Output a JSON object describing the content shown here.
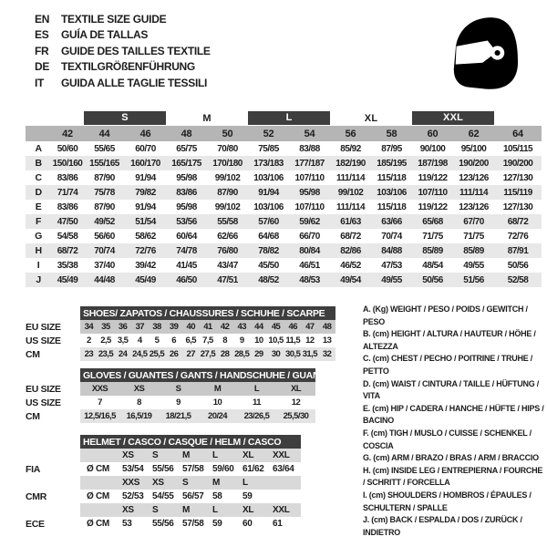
{
  "header": {
    "languages": [
      {
        "code": "EN",
        "title": "TEXTILE SIZE GUIDE"
      },
      {
        "code": "ES",
        "title": "GUÍA DE TALLAS"
      },
      {
        "code": "FR",
        "title": "GUIDE DES TAILLES TEXTILE"
      },
      {
        "code": "DE",
        "title": "TEXTILGRÖßENFÜHRUNG"
      },
      {
        "code": "IT",
        "title": "GUIDA ALLE TAGLIE TESSILI"
      }
    ],
    "logo": "helmet-icon"
  },
  "textile_table": {
    "size_groups": [
      {
        "label": "S",
        "boxed": true
      },
      {
        "label": "M",
        "boxed": false
      },
      {
        "label": "L",
        "boxed": true
      },
      {
        "label": "XL",
        "boxed": false
      },
      {
        "label": "XXL",
        "boxed": true
      }
    ],
    "columns": [
      "42",
      "44",
      "46",
      "48",
      "50",
      "52",
      "54",
      "56",
      "58",
      "60",
      "62",
      "64"
    ],
    "rows": [
      {
        "label": "A",
        "values": [
          "50/60",
          "55/65",
          "60/70",
          "65/75",
          "70/80",
          "75/85",
          "83/88",
          "85/92",
          "87/95",
          "90/100",
          "95/100",
          "105/115"
        ]
      },
      {
        "label": "B",
        "values": [
          "150/160",
          "155/165",
          "160/170",
          "165/175",
          "170/180",
          "173/183",
          "177/187",
          "182/190",
          "185/195",
          "187/198",
          "190/200",
          "190/200"
        ]
      },
      {
        "label": "C",
        "values": [
          "83/86",
          "87/90",
          "91/94",
          "95/98",
          "99/102",
          "103/106",
          "107/110",
          "111/114",
          "115/118",
          "119/122",
          "123/126",
          "127/130"
        ]
      },
      {
        "label": "D",
        "values": [
          "71/74",
          "75/78",
          "79/82",
          "83/86",
          "87/90",
          "91/94",
          "95/98",
          "99/102",
          "103/106",
          "107/110",
          "111/114",
          "115/119"
        ]
      },
      {
        "label": "E",
        "values": [
          "83/86",
          "87/90",
          "91/94",
          "95/98",
          "99/102",
          "103/106",
          "107/110",
          "111/114",
          "115/118",
          "119/122",
          "123/126",
          "127/130"
        ]
      },
      {
        "label": "F",
        "values": [
          "47/50",
          "49/52",
          "51/54",
          "53/56",
          "55/58",
          "57/60",
          "59/62",
          "61/63",
          "63/66",
          "65/68",
          "67/70",
          "68/72"
        ]
      },
      {
        "label": "G",
        "values": [
          "54/58",
          "56/60",
          "58/62",
          "60/64",
          "62/66",
          "64/68",
          "66/70",
          "68/72",
          "70/74",
          "71/75",
          "71/75",
          "72/76"
        ]
      },
      {
        "label": "H",
        "values": [
          "68/72",
          "70/74",
          "72/76",
          "74/78",
          "76/80",
          "78/82",
          "80/84",
          "82/86",
          "84/88",
          "85/89",
          "85/89",
          "87/91"
        ]
      },
      {
        "label": "I",
        "values": [
          "35/38",
          "37/40",
          "39/42",
          "41/45",
          "43/47",
          "45/50",
          "46/51",
          "46/52",
          "47/53",
          "48/54",
          "49/55",
          "50/56"
        ]
      },
      {
        "label": "J",
        "values": [
          "45/49",
          "44/48",
          "45/49",
          "46/50",
          "47/51",
          "48/52",
          "48/53",
          "49/54",
          "49/55",
          "50/56",
          "51/56",
          "52/58"
        ]
      }
    ]
  },
  "shoes_table": {
    "title": "SHOES/ ZAPATOS / CHAUSSURES / SCHUHE / SCARPE",
    "rows": [
      {
        "label": "EU SIZE",
        "shade": "med",
        "values": [
          "34",
          "35",
          "36",
          "37",
          "38",
          "39",
          "40",
          "41",
          "42",
          "43",
          "44",
          "45",
          "46",
          "47",
          "48"
        ]
      },
      {
        "label": "US SIZE",
        "shade": "none",
        "values": [
          "2",
          "2,5",
          "3,5",
          "4",
          "5",
          "6",
          "6,5",
          "7,5",
          "8",
          "9",
          "10",
          "10,5",
          "11,5",
          "12",
          "13"
        ]
      },
      {
        "label": "CM",
        "shade": "light",
        "values": [
          "23",
          "23,5",
          "24",
          "24,5",
          "25,5",
          "26",
          "27",
          "27,5",
          "28",
          "28,5",
          "29",
          "30",
          "30,5",
          "31,5",
          "32"
        ]
      }
    ]
  },
  "gloves_table": {
    "title": "GLOVES / GUANTES / GANTS / HANDSCHUHE / GUANTI",
    "rows": [
      {
        "label": "EU SIZE",
        "shade": "med",
        "values": [
          "XXS",
          "XS",
          "S",
          "M",
          "L",
          "XL"
        ]
      },
      {
        "label": "US SIZE",
        "shade": "none",
        "values": [
          "7",
          "8",
          "9",
          "10",
          "11",
          "12"
        ]
      },
      {
        "label": "CM",
        "shade": "light",
        "values": [
          "12,5/16,5",
          "16,5/19",
          "18/21,5",
          "20/24",
          "23/26,5",
          "25,5/30"
        ]
      }
    ]
  },
  "helmet_table": {
    "title": "HELMET / CASCO / CASQUE / HELM / CASCO",
    "sections": [
      {
        "label": "FIA",
        "unit": "Ø CM",
        "sizes": [
          "XS",
          "S",
          "M",
          "L",
          "XL",
          "XXL"
        ],
        "values": [
          "53/54",
          "55/56",
          "57/58",
          "59/60",
          "61/62",
          "63/64"
        ]
      },
      {
        "label": "CMR",
        "unit": "Ø CM",
        "sizes": [
          "XXS",
          "XS",
          "S",
          "M",
          "L",
          ""
        ],
        "values": [
          "52/53",
          "54/55",
          "56/57",
          "58",
          "59",
          ""
        ]
      },
      {
        "label": "ECE",
        "unit": "Ø CM",
        "sizes": [
          "XS",
          "S",
          "M",
          "L",
          "XL",
          "XXL"
        ],
        "values": [
          "53",
          "55/56",
          "57/58",
          "59",
          "60",
          "61"
        ]
      }
    ]
  },
  "legend": {
    "items": [
      "A. (Kg) WEIGHT / PESO / POIDS / GEWITCH / PESO",
      "B. (cm) HEIGHT / ALTURA / HAUTEUR / HÖHE / ALTEZZA",
      "C. (cm) CHEST / PECHO / POITRINE / TRUHE / PETTO",
      "D. (cm) WAIST / CINTURA / TAILLE / HÜFTUNG / VITA",
      "E. (cm) HIP / CADERA / HANCHE / HÜFTE / HIPS /  BACINO",
      "F. (cm) TIGH / MUSLO / CUISSE / SCHENKEL / COSCIA",
      "G. (cm) ARM  / BRAZO / BRAS / ARM / BRACCIO",
      "H. (cm) INSIDE LEG / ENTREPIERNA / FOURCHE / SCHRITT / FORCELLA",
      "I. (cm) SHOULDERS / HOMBROS / ÉPAULES / SCHULTERN / SPALLE",
      "J. (cm) BACK / ESPALDA / DOS / ZURÜCK / INDIETRO"
    ]
  },
  "colors": {
    "dark_bar": "#3e3e3e",
    "number_row": "#b5b5b5",
    "stripe": "#e8e8e8",
    "shade_medium": "#c8c8c8",
    "shade_light": "#e3e3e3",
    "helmet_shade": "#d9d9d9",
    "text": "#1d1d1d"
  }
}
